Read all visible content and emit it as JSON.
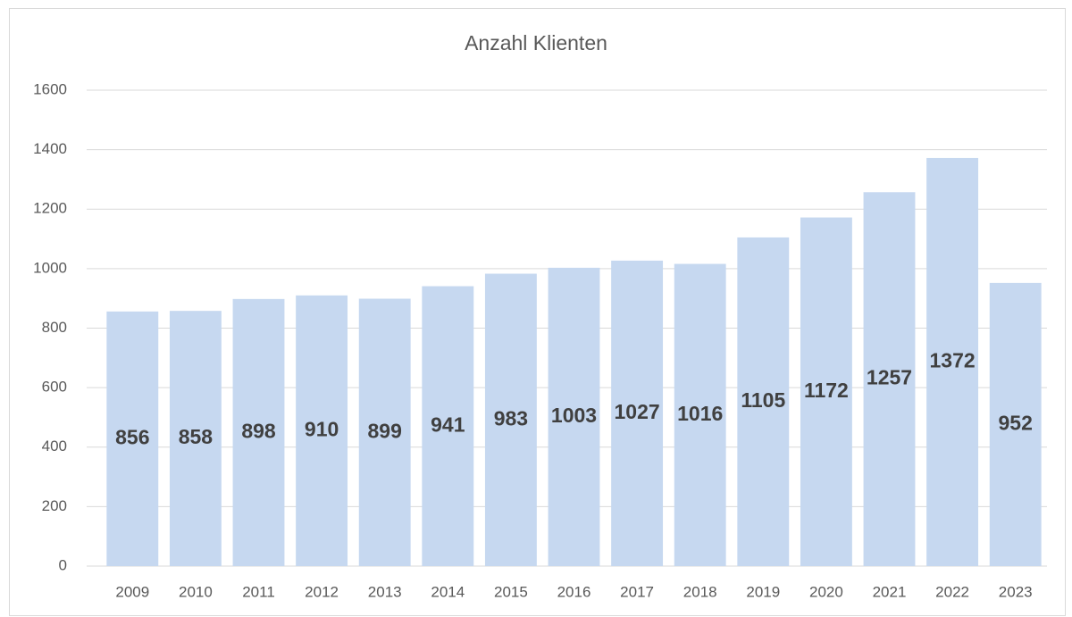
{
  "chart_data": {
    "type": "bar",
    "title": "Anzahl Klienten",
    "categories": [
      "2009",
      "2010",
      "2011",
      "2012",
      "2013",
      "2014",
      "2015",
      "2016",
      "2017",
      "2018",
      "2019",
      "2020",
      "2021",
      "2022",
      "2023"
    ],
    "values": [
      856,
      858,
      898,
      910,
      899,
      941,
      983,
      1003,
      1027,
      1016,
      1105,
      1172,
      1257,
      1372,
      952
    ],
    "color": "#c6d8f0",
    "ylim": [
      0,
      1600
    ],
    "yticks": [
      0,
      200,
      400,
      600,
      800,
      1000,
      1200,
      1400,
      1600
    ],
    "grid": true
  }
}
